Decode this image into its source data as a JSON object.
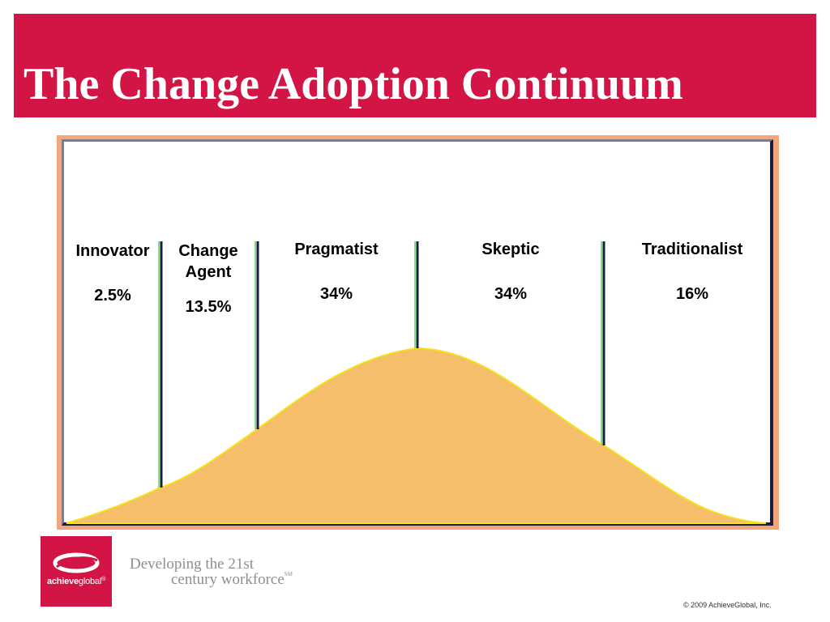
{
  "title": "The Change Adoption Continuum",
  "segments": [
    {
      "name": "Innovator",
      "percent": "2.5%"
    },
    {
      "name_line1": "Change",
      "name_line2": "Agent",
      "percent": "13.5%"
    },
    {
      "name": "Pragmatist",
      "percent": "34%"
    },
    {
      "name": "Skeptic",
      "percent": "34%"
    },
    {
      "name": "Traditionalist",
      "percent": "16%"
    }
  ],
  "logo": {
    "brand_bold": "achieve",
    "brand_regular": "global",
    "mark": "®"
  },
  "tagline": {
    "line1": "Developing the 21st",
    "line2": "century workforce",
    "mark": "SM"
  },
  "copyright": "© 2009 AchieveGlobal, Inc.",
  "colors": {
    "title_bar": "#d21545",
    "frame": "#f5a57c",
    "curve_fill": "#f4be6a",
    "curve_stroke": "#f5e21a",
    "divider": "#1a1d3f",
    "divider_highlight": "#7ee07e"
  }
}
